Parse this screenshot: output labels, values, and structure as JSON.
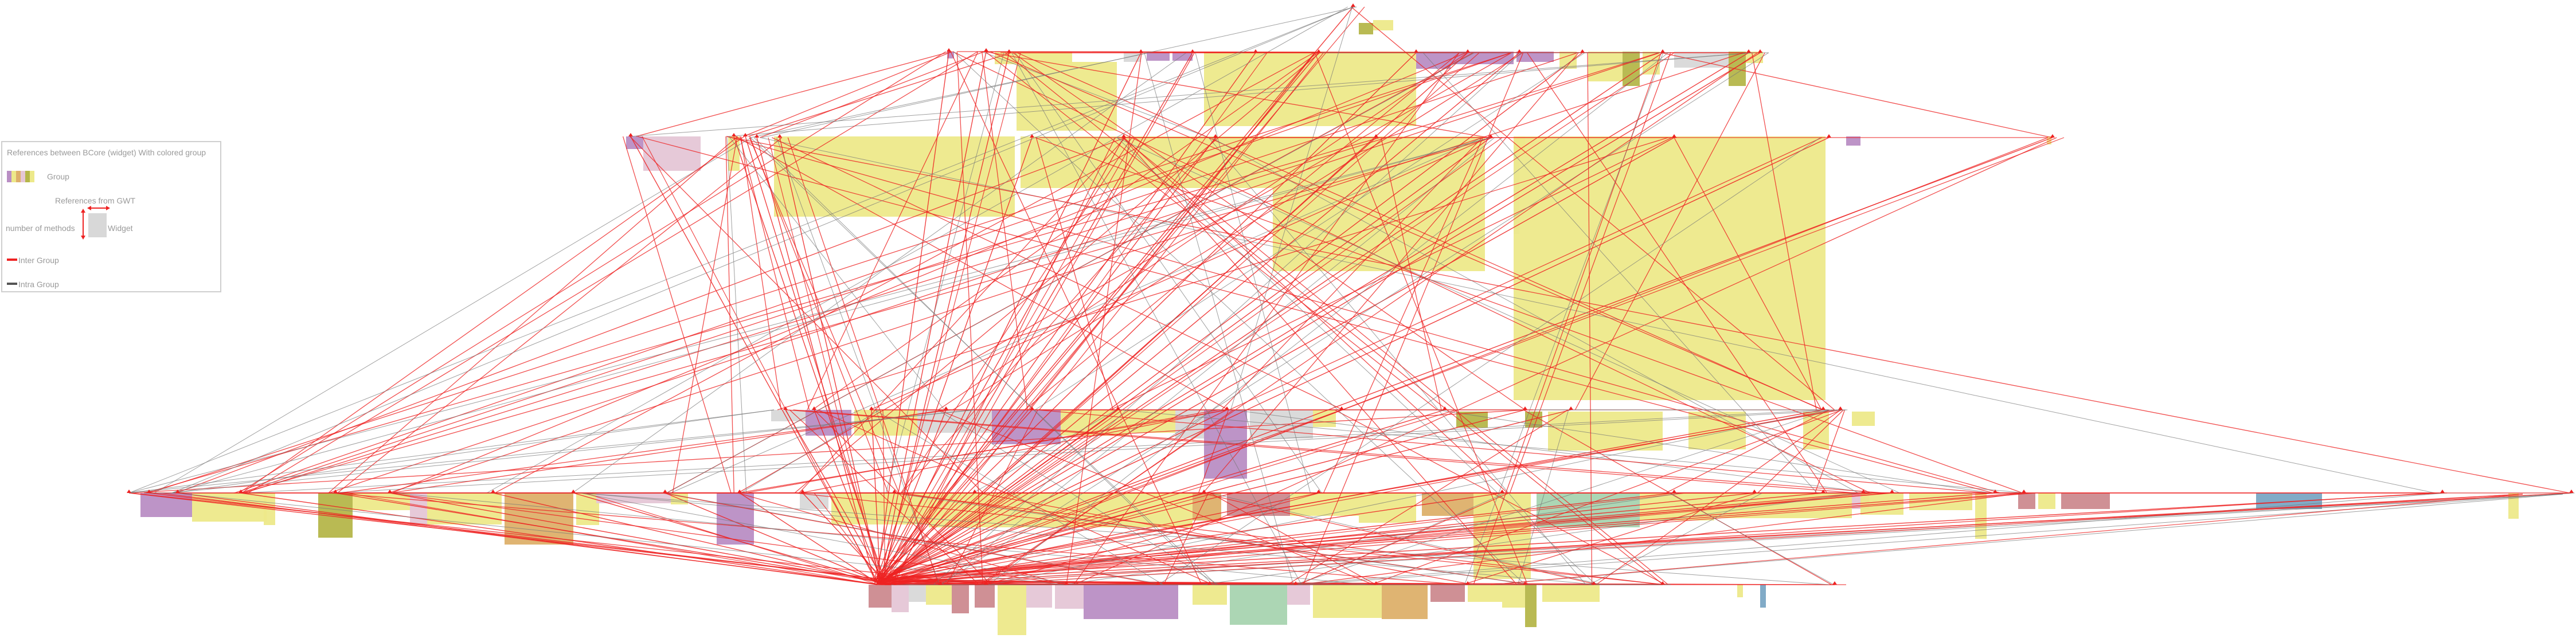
{
  "legend": {
    "title": "References between BCore (widget) With colored group",
    "group_label": "Group",
    "refs_label": "References from GWT",
    "methods_label": "number of methods",
    "widget_label": "Widget",
    "inter_label": "Inter Group",
    "intra_label": "Intra Group"
  },
  "colors": {
    "inter_group": "#ee2222",
    "intra_group": "#777777",
    "yellow": "#ede98a",
    "purple": "#b98ec4",
    "pink": "#e5c6d6",
    "olive": "#b5b64a",
    "lightgray": "#d8d8d8",
    "green": "#a8d4b0",
    "orange": "#ddb06a",
    "rose": "#cc8a8f",
    "blue": "#7aa6c4"
  },
  "legend_group_swatch": [
    "#b98ec4",
    "#ede98a",
    "#ddb06a",
    "#e5c6d6",
    "#b5b64a",
    "#ede98a"
  ]
}
